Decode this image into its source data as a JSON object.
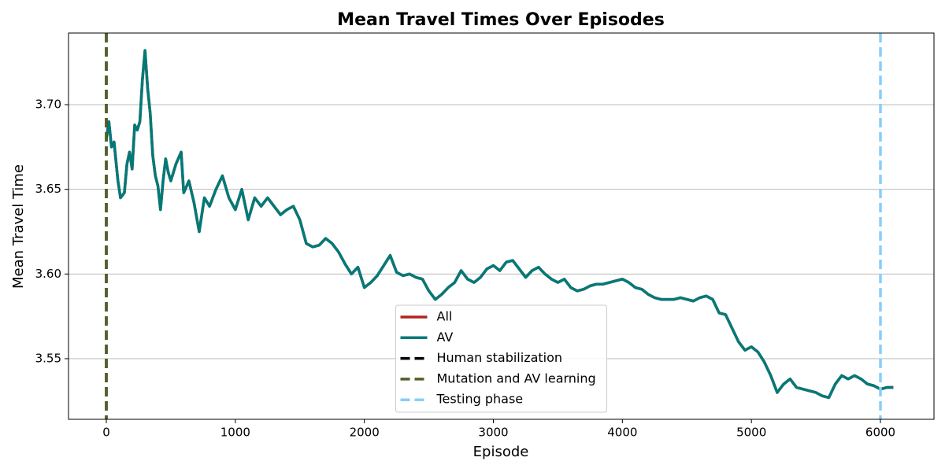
{
  "chart_data": {
    "type": "line",
    "title": "Mean Travel Times Over Episodes",
    "x_label": "Episode",
    "y_label": "Mean Travel Time",
    "xlim": [
      -293,
      6415
    ],
    "ylim": [
      3.5142,
      3.7423
    ],
    "xticks": [
      0,
      1000,
      2000,
      3000,
      4000,
      5000,
      6000
    ],
    "yticks": [
      3.55,
      {
        "value": 3.6,
        "label": "3.60"
      },
      3.65,
      {
        "value": 3.7,
        "label": "3.70"
      }
    ],
    "grid": "y",
    "legend": "lower center",
    "x": [
      0,
      20,
      40,
      60,
      90,
      110,
      140,
      160,
      180,
      200,
      220,
      240,
      260,
      280,
      300,
      320,
      340,
      360,
      380,
      400,
      420,
      440,
      460,
      480,
      500,
      540,
      580,
      600,
      640,
      680,
      720,
      760,
      800,
      850,
      900,
      950,
      1000,
      1050,
      1100,
      1150,
      1200,
      1250,
      1300,
      1350,
      1400,
      1450,
      1500,
      1550,
      1600,
      1650,
      1700,
      1750,
      1800,
      1850,
      1900,
      1950,
      2000,
      2050,
      2100,
      2150,
      2200,
      2250,
      2300,
      2350,
      2400,
      2450,
      2500,
      2550,
      2600,
      2650,
      2700,
      2750,
      2800,
      2850,
      2900,
      2950,
      3000,
      3050,
      3100,
      3150,
      3200,
      3250,
      3300,
      3350,
      3400,
      3450,
      3500,
      3550,
      3600,
      3650,
      3700,
      3750,
      3800,
      3850,
      3900,
      3950,
      4000,
      4050,
      4100,
      4150,
      4200,
      4250,
      4300,
      4350,
      4400,
      4450,
      4500,
      4550,
      4600,
      4650,
      4700,
      4750,
      4800,
      4850,
      4900,
      4950,
      5000,
      5050,
      5100,
      5150,
      5200,
      5250,
      5300,
      5350,
      5400,
      5450,
      5500,
      5550,
      5600,
      5650,
      5700,
      5750,
      5800,
      5850,
      5900,
      5950,
      6000,
      6050,
      6100
    ],
    "series": [
      {
        "name": "All",
        "color": "#b22222",
        "values": [
          3.68,
          3.69,
          3.675,
          3.678,
          3.655,
          3.645,
          3.648,
          3.665,
          3.672,
          3.662,
          3.688,
          3.685,
          3.69,
          3.715,
          3.732,
          3.71,
          3.695,
          3.67,
          3.658,
          3.652,
          3.638,
          3.655,
          3.668,
          3.66,
          3.655,
          3.665,
          3.672,
          3.648,
          3.655,
          3.642,
          3.625,
          3.645,
          3.64,
          3.65,
          3.658,
          3.645,
          3.638,
          3.65,
          3.632,
          3.645,
          3.64,
          3.645,
          3.64,
          3.635,
          3.638,
          3.64,
          3.632,
          3.618,
          3.616,
          3.617,
          3.621,
          3.618,
          3.613,
          3.606,
          3.6,
          3.604,
          3.592,
          3.595,
          3.599,
          3.605,
          3.611,
          3.601,
          3.599,
          3.6,
          3.598,
          3.597,
          3.59,
          3.585,
          3.588,
          3.592,
          3.595,
          3.602,
          3.597,
          3.595,
          3.598,
          3.603,
          3.605,
          3.602,
          3.607,
          3.608,
          3.603,
          3.598,
          3.602,
          3.604,
          3.6,
          3.597,
          3.595,
          3.597,
          3.592,
          3.59,
          3.591,
          3.593,
          3.594,
          3.594,
          3.595,
          3.596,
          3.597,
          3.595,
          3.592,
          3.591,
          3.588,
          3.586,
          3.585,
          3.585,
          3.585,
          3.586,
          3.585,
          3.584,
          3.586,
          3.587,
          3.585,
          3.577,
          3.576,
          3.568,
          3.56,
          3.555,
          3.557,
          3.554,
          3.548,
          3.54,
          3.53,
          3.535,
          3.538,
          3.533,
          3.532,
          3.531,
          3.53,
          3.528,
          3.527,
          3.535,
          3.54,
          3.538,
          3.54,
          3.538,
          3.535,
          3.534,
          3.532,
          3.533,
          3.533
        ]
      },
      {
        "name": "AV",
        "color": "#007a78",
        "values": [
          3.68,
          3.69,
          3.675,
          3.678,
          3.655,
          3.645,
          3.648,
          3.665,
          3.672,
          3.662,
          3.688,
          3.685,
          3.69,
          3.715,
          3.732,
          3.71,
          3.695,
          3.67,
          3.658,
          3.652,
          3.638,
          3.655,
          3.668,
          3.66,
          3.655,
          3.665,
          3.672,
          3.648,
          3.655,
          3.642,
          3.625,
          3.645,
          3.64,
          3.65,
          3.658,
          3.645,
          3.638,
          3.65,
          3.632,
          3.645,
          3.64,
          3.645,
          3.64,
          3.635,
          3.638,
          3.64,
          3.632,
          3.618,
          3.616,
          3.617,
          3.621,
          3.618,
          3.613,
          3.606,
          3.6,
          3.604,
          3.592,
          3.595,
          3.599,
          3.605,
          3.611,
          3.601,
          3.599,
          3.6,
          3.598,
          3.597,
          3.59,
          3.585,
          3.588,
          3.592,
          3.595,
          3.602,
          3.597,
          3.595,
          3.598,
          3.603,
          3.605,
          3.602,
          3.607,
          3.608,
          3.603,
          3.598,
          3.602,
          3.604,
          3.6,
          3.597,
          3.595,
          3.597,
          3.592,
          3.59,
          3.591,
          3.593,
          3.594,
          3.594,
          3.595,
          3.596,
          3.597,
          3.595,
          3.592,
          3.591,
          3.588,
          3.586,
          3.585,
          3.585,
          3.585,
          3.586,
          3.585,
          3.584,
          3.586,
          3.587,
          3.585,
          3.577,
          3.576,
          3.568,
          3.56,
          3.555,
          3.557,
          3.554,
          3.548,
          3.54,
          3.53,
          3.535,
          3.538,
          3.533,
          3.532,
          3.531,
          3.53,
          3.528,
          3.527,
          3.535,
          3.54,
          3.538,
          3.54,
          3.538,
          3.535,
          3.534,
          3.532,
          3.533,
          3.533
        ]
      }
    ],
    "vlines": [
      {
        "name": "Human stabilization",
        "color": "#000000",
        "x": 0
      },
      {
        "name": "Mutation and AV learning",
        "color": "#4f6228",
        "x": 0
      },
      {
        "name": "Testing phase",
        "color": "#87cefa",
        "x": 6000
      }
    ]
  }
}
